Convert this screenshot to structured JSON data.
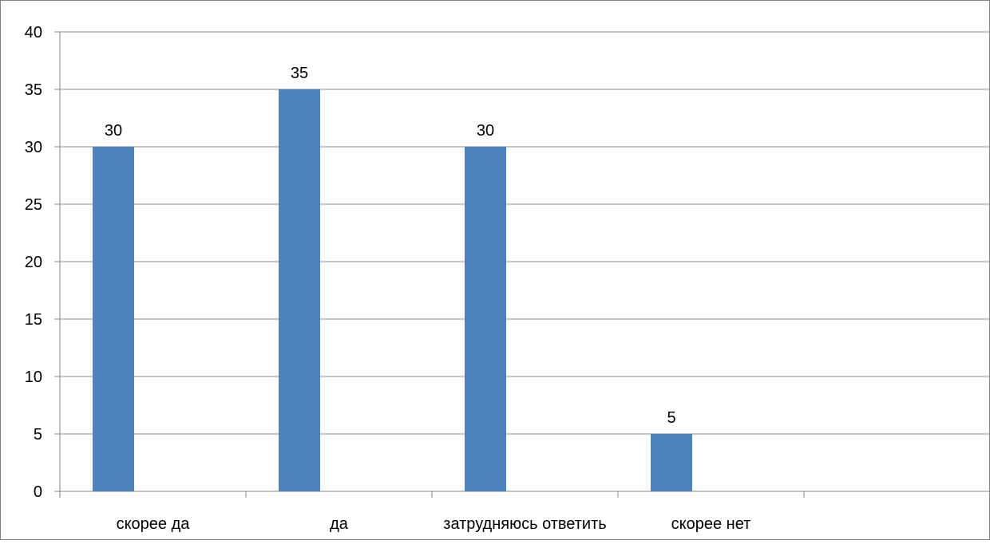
{
  "chart_data": {
    "type": "bar",
    "categories": [
      "скорее да",
      "да",
      "затрудняюсь ответить",
      "скорее нет",
      ""
    ],
    "series": [
      {
        "values": [
          30,
          35,
          30,
          5,
          null
        ]
      }
    ],
    "data_labels": [
      "30",
      "35",
      "30",
      "5",
      ""
    ],
    "yticks": [
      "0",
      "5",
      "10",
      "15",
      "20",
      "25",
      "30",
      "35",
      "40"
    ],
    "ylim": [
      0,
      40
    ],
    "ystep": 5,
    "grid": true,
    "legend": "none",
    "bar_color": "#4f81bd",
    "grid_color": "#8c8c8c",
    "axis_color": "#868686",
    "border_color": "#7f7f7f",
    "title": "",
    "xlabel": "",
    "ylabel": ""
  }
}
